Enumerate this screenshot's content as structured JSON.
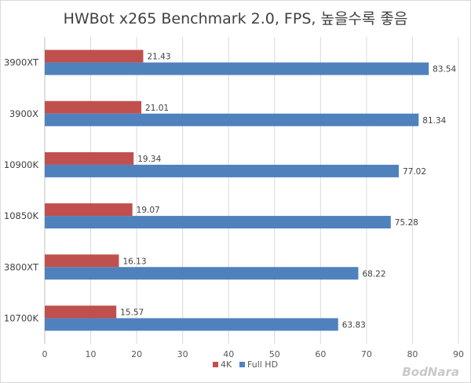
{
  "chart_data": {
    "type": "bar",
    "orientation": "horizontal",
    "title": "HWBot x265 Benchmark 2.0, FPS, 높을수록 좋음",
    "categories": [
      "3900XT",
      "3900X",
      "10900K",
      "10850K",
      "3800XT",
      "10700K"
    ],
    "series": [
      {
        "name": "4K",
        "color": "#c0504d",
        "values": [
          21.43,
          21.01,
          19.34,
          19.07,
          16.13,
          15.57
        ]
      },
      {
        "name": "Full HD",
        "color": "#4f81bd",
        "values": [
          83.54,
          81.34,
          77.02,
          75.28,
          68.22,
          63.83
        ]
      }
    ],
    "xlim": [
      0,
      90
    ],
    "xticks": [
      0,
      10,
      20,
      30,
      40,
      50,
      60,
      70,
      80,
      90
    ],
    "grid": true,
    "legend": "bottom-center"
  },
  "watermark": "BodNara"
}
